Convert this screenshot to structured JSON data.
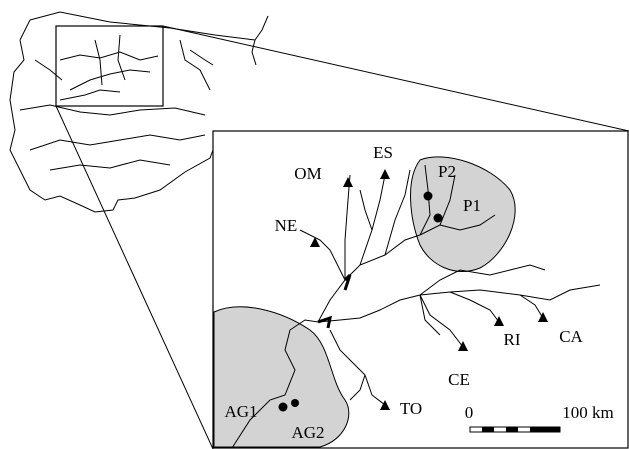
{
  "sites": [
    {
      "label": "OM"
    },
    {
      "label": "ES"
    },
    {
      "label": "P2"
    },
    {
      "label": "P1"
    },
    {
      "label": "NE"
    },
    {
      "label": "RI"
    },
    {
      "label": "CA"
    },
    {
      "label": "CE"
    },
    {
      "label": "TO"
    },
    {
      "label": "AG1"
    },
    {
      "label": "AG2"
    }
  ],
  "scale_bar": {
    "start": "0",
    "end": "100 km"
  }
}
